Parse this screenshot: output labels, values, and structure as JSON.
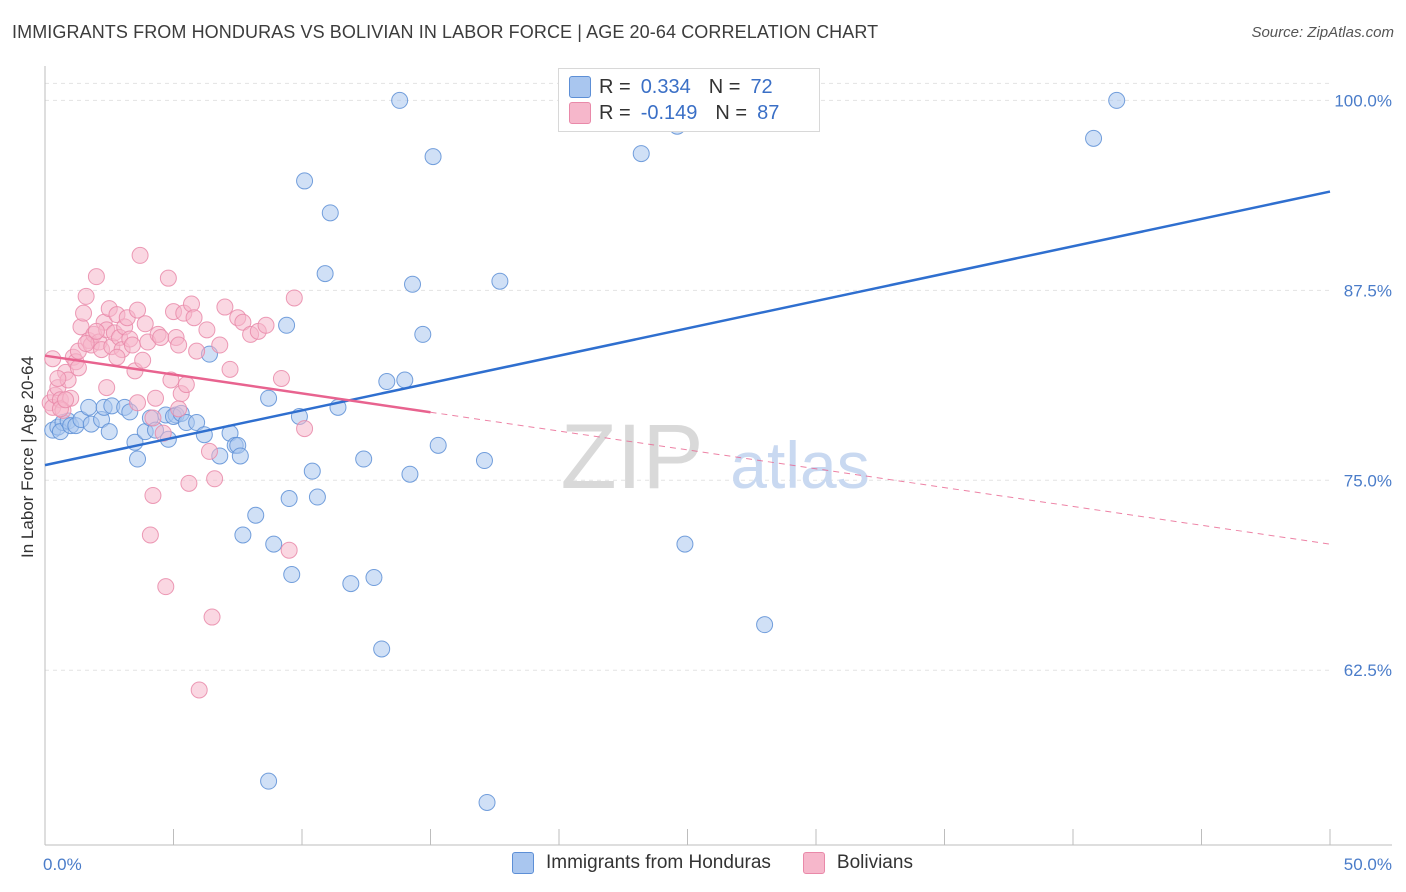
{
  "header": {
    "title": "IMMIGRANTS FROM HONDURAS VS BOLIVIAN IN LABOR FORCE | AGE 20-64 CORRELATION CHART",
    "source": "Source: ZipAtlas.com"
  },
  "watermark": {
    "zip": "ZIP",
    "atlas": "atlas"
  },
  "colors": {
    "blue_fill": "#a9c6ef",
    "blue_stroke": "#5d8fd6",
    "blue_line": "#2f6fcf",
    "pink_fill": "#f6b7cb",
    "pink_stroke": "#e989a9",
    "pink_line": "#e8638f",
    "axis_text": "#4a7cc9",
    "grid": "#e3e3e3"
  },
  "legend": {
    "series1": {
      "r_label": "R =",
      "r_value": "0.334",
      "n_label": "N =",
      "n_value": "72",
      "name": "Immigrants from Honduras"
    },
    "series2": {
      "r_label": "R =",
      "r_value": "-0.149",
      "n_label": "N =",
      "n_value": "87",
      "name": "Bolivians"
    }
  },
  "chart_data": {
    "type": "scatter",
    "title": "IMMIGRANTS FROM HONDURAS VS BOLIVIAN IN LABOR FORCE | AGE 20-64 CORRELATION CHART",
    "xlabel": "",
    "ylabel": "In Labor Force | Age 20-64",
    "xlim": [
      0,
      50
    ],
    "ylim": [
      51,
      102
    ],
    "x_tick_labels": [
      "0.0%",
      "50.0%"
    ],
    "y_ticks": [
      62.5,
      75.0,
      87.5,
      100.0
    ],
    "y_tick_labels": [
      "62.5%",
      "75.0%",
      "87.5%",
      "100.0%"
    ],
    "series": [
      {
        "name": "Immigrants from Honduras",
        "r": 0.334,
        "n": 72,
        "trend": {
          "x0": 0,
          "y0": 76.0,
          "x1": 50,
          "y1": 94.0,
          "solid_to": 50
        },
        "points": [
          [
            0.3,
            78.3
          ],
          [
            0.5,
            78.5
          ],
          [
            0.7,
            78.8
          ],
          [
            0.6,
            78.2
          ],
          [
            0.9,
            78.9
          ],
          [
            1.0,
            78.6
          ],
          [
            1.2,
            78.6
          ],
          [
            1.4,
            79.0
          ],
          [
            1.7,
            79.8
          ],
          [
            1.8,
            78.7
          ],
          [
            2.2,
            79.0
          ],
          [
            2.3,
            79.8
          ],
          [
            2.5,
            78.2
          ],
          [
            2.6,
            79.9
          ],
          [
            3.1,
            79.8
          ],
          [
            3.3,
            79.5
          ],
          [
            3.5,
            77.5
          ],
          [
            3.6,
            76.4
          ],
          [
            3.9,
            78.2
          ],
          [
            4.1,
            79.1
          ],
          [
            4.3,
            78.3
          ],
          [
            4.7,
            79.3
          ],
          [
            4.8,
            77.7
          ],
          [
            5.1,
            79.3
          ],
          [
            5.0,
            79.2
          ],
          [
            5.3,
            79.4
          ],
          [
            5.5,
            78.8
          ],
          [
            5.9,
            78.8
          ],
          [
            6.2,
            78.0
          ],
          [
            6.4,
            83.3
          ],
          [
            6.8,
            76.6
          ],
          [
            7.2,
            78.1
          ],
          [
            7.4,
            77.3
          ],
          [
            7.5,
            77.3
          ],
          [
            7.6,
            76.6
          ],
          [
            7.7,
            71.4
          ],
          [
            8.2,
            72.7
          ],
          [
            8.7,
            80.4
          ],
          [
            8.9,
            70.8
          ],
          [
            9.4,
            85.2
          ],
          [
            9.5,
            73.8
          ],
          [
            9.6,
            68.8
          ],
          [
            9.9,
            79.2
          ],
          [
            10.1,
            94.7
          ],
          [
            10.4,
            75.6
          ],
          [
            10.6,
            73.9
          ],
          [
            10.9,
            88.6
          ],
          [
            11.1,
            92.6
          ],
          [
            11.4,
            79.8
          ],
          [
            11.9,
            68.2
          ],
          [
            12.4,
            76.4
          ],
          [
            12.8,
            68.6
          ],
          [
            13.1,
            63.9
          ],
          [
            13.3,
            81.5
          ],
          [
            13.8,
            100.0
          ],
          [
            14.0,
            81.6
          ],
          [
            14.2,
            75.4
          ],
          [
            14.3,
            87.9
          ],
          [
            14.7,
            84.6
          ],
          [
            15.1,
            96.3
          ],
          [
            15.3,
            77.3
          ],
          [
            17.7,
            88.1
          ],
          [
            17.2,
            53.8
          ],
          [
            17.1,
            76.3
          ],
          [
            23.2,
            96.5
          ],
          [
            23.8,
            100.0
          ],
          [
            24.6,
            98.3
          ],
          [
            24.9,
            70.8
          ],
          [
            28.0,
            65.5
          ],
          [
            40.8,
            97.5
          ],
          [
            41.7,
            100.0
          ],
          [
            8.7,
            55.2
          ]
        ]
      },
      {
        "name": "Bolivians",
        "r": -0.149,
        "n": 87,
        "trend": {
          "x0": 0,
          "y0": 83.2,
          "x1": 50,
          "y1": 70.8,
          "solid_to": 15
        },
        "points": [
          [
            0.2,
            80.1
          ],
          [
            0.3,
            79.8
          ],
          [
            0.4,
            80.6
          ],
          [
            0.5,
            81.1
          ],
          [
            0.6,
            80.3
          ],
          [
            0.7,
            79.6
          ],
          [
            0.8,
            82.1
          ],
          [
            0.9,
            81.6
          ],
          [
            1.0,
            80.4
          ],
          [
            1.1,
            83.1
          ],
          [
            1.2,
            82.8
          ],
          [
            1.3,
            83.5
          ],
          [
            1.4,
            85.1
          ],
          [
            1.5,
            86.0
          ],
          [
            1.6,
            87.1
          ],
          [
            1.7,
            84.2
          ],
          [
            1.8,
            83.9
          ],
          [
            1.9,
            84.6
          ],
          [
            2.0,
            88.4
          ],
          [
            2.1,
            84.1
          ],
          [
            2.2,
            83.6
          ],
          [
            2.3,
            85.4
          ],
          [
            2.4,
            84.9
          ],
          [
            2.5,
            86.3
          ],
          [
            2.6,
            83.8
          ],
          [
            2.7,
            84.7
          ],
          [
            2.8,
            85.9
          ],
          [
            2.9,
            84.4
          ],
          [
            3.0,
            83.6
          ],
          [
            3.1,
            85.1
          ],
          [
            3.2,
            85.7
          ],
          [
            3.3,
            84.3
          ],
          [
            3.4,
            83.9
          ],
          [
            3.5,
            82.2
          ],
          [
            3.6,
            86.2
          ],
          [
            3.7,
            89.8
          ],
          [
            3.8,
            82.9
          ],
          [
            3.9,
            85.3
          ],
          [
            4.0,
            84.1
          ],
          [
            4.1,
            71.4
          ],
          [
            4.2,
            74.0
          ],
          [
            4.3,
            80.4
          ],
          [
            4.4,
            84.6
          ],
          [
            4.5,
            84.4
          ],
          [
            4.6,
            78.1
          ],
          [
            4.7,
            68.0
          ],
          [
            4.8,
            88.3
          ],
          [
            4.9,
            81.6
          ],
          [
            5.0,
            86.1
          ],
          [
            5.1,
            84.4
          ],
          [
            5.2,
            83.9
          ],
          [
            5.3,
            80.7
          ],
          [
            5.4,
            86.0
          ],
          [
            5.5,
            81.3
          ],
          [
            5.6,
            74.8
          ],
          [
            5.7,
            86.6
          ],
          [
            5.8,
            85.7
          ],
          [
            5.9,
            83.5
          ],
          [
            6.0,
            61.2
          ],
          [
            6.3,
            84.9
          ],
          [
            6.5,
            66.0
          ],
          [
            6.6,
            75.1
          ],
          [
            6.8,
            83.9
          ],
          [
            7.0,
            86.4
          ],
          [
            7.2,
            82.3
          ],
          [
            7.5,
            85.7
          ],
          [
            7.7,
            85.4
          ],
          [
            8.0,
            84.6
          ],
          [
            8.3,
            84.8
          ],
          [
            8.6,
            85.2
          ],
          [
            9.2,
            81.7
          ],
          [
            9.5,
            70.4
          ],
          [
            9.7,
            87.0
          ],
          [
            10.1,
            78.4
          ],
          [
            0.3,
            83.0
          ],
          [
            0.5,
            81.7
          ],
          [
            0.6,
            79.7
          ],
          [
            0.8,
            80.3
          ],
          [
            1.3,
            82.4
          ],
          [
            1.6,
            84.0
          ],
          [
            2.0,
            84.8
          ],
          [
            2.4,
            81.1
          ],
          [
            2.8,
            83.1
          ],
          [
            3.6,
            80.1
          ],
          [
            4.2,
            79.1
          ],
          [
            5.2,
            79.7
          ],
          [
            6.4,
            76.9
          ]
        ]
      }
    ]
  }
}
